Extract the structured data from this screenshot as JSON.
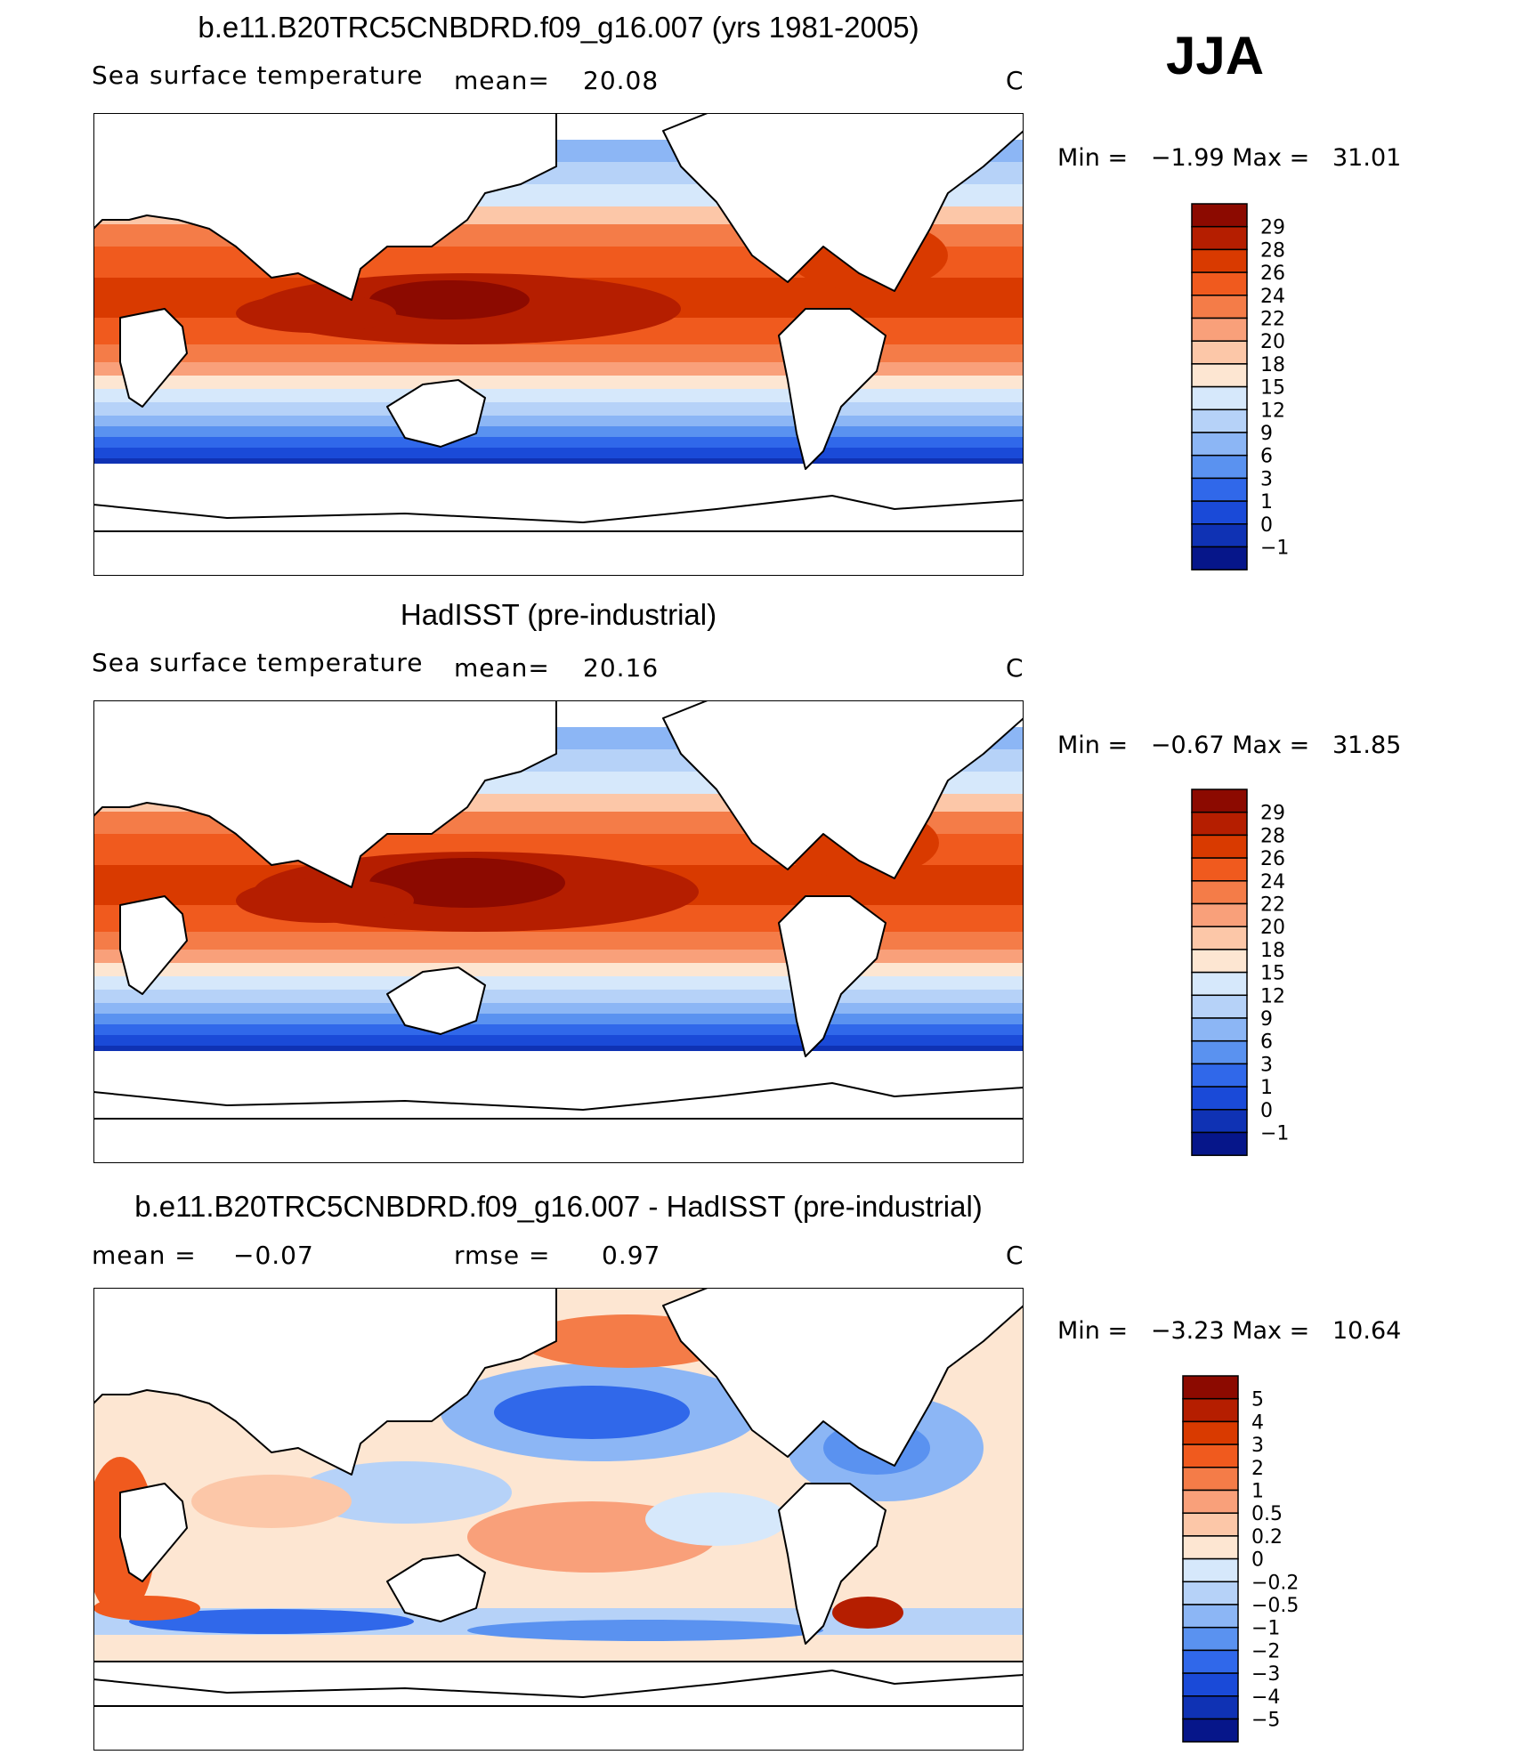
{
  "season": "JJA",
  "panels": [
    {
      "title": "b.e11.B20TRC5CNBDRD.f09_g16.007 (yrs 1981-2005)",
      "variable": "Sea surface temperature",
      "mean_label": "mean=",
      "mean_value": "20.08",
      "extra_label": "",
      "extra_value": "",
      "units": "C",
      "min_label": "Min =",
      "min_value": "−1.99",
      "max_label": "Max =",
      "max_value": "31.01",
      "colorbar": {
        "labels": [
          "29",
          "28",
          "26",
          "24",
          "22",
          "20",
          "18",
          "15",
          "12",
          "9",
          "6",
          "3",
          "1",
          "0",
          "−1"
        ],
        "colors": [
          "#8c0a00",
          "#b51e00",
          "#d93a00",
          "#f05a1e",
          "#f47c48",
          "#f9a07a",
          "#fcc7a8",
          "#fde6d2",
          "#d6e8fb",
          "#b6d2f8",
          "#8cb6f5",
          "#5a92f0",
          "#3068ea",
          "#1a4ad8",
          "#0f32b4",
          "#06168a"
        ]
      }
    },
    {
      "title": "HadISST (pre-industrial)",
      "variable": "Sea surface temperature",
      "mean_label": "mean=",
      "mean_value": "20.16",
      "extra_label": "",
      "extra_value": "",
      "units": "C",
      "min_label": "Min =",
      "min_value": "−0.67",
      "max_label": "Max =",
      "max_value": "31.85",
      "colorbar": {
        "labels": [
          "29",
          "28",
          "26",
          "24",
          "22",
          "20",
          "18",
          "15",
          "12",
          "9",
          "6",
          "3",
          "1",
          "0",
          "−1"
        ],
        "colors": [
          "#8c0a00",
          "#b51e00",
          "#d93a00",
          "#f05a1e",
          "#f47c48",
          "#f9a07a",
          "#fcc7a8",
          "#fde6d2",
          "#d6e8fb",
          "#b6d2f8",
          "#8cb6f5",
          "#5a92f0",
          "#3068ea",
          "#1a4ad8",
          "#0f32b4",
          "#06168a"
        ]
      }
    },
    {
      "title": "b.e11.B20TRC5CNBDRD.f09_g16.007 - HadISST (pre-industrial)",
      "variable": "",
      "mean_label": "mean =",
      "mean_value": "−0.07",
      "extra_label": "rmse =",
      "extra_value": "0.97",
      "units": "C",
      "min_label": "Min =",
      "min_value": "−3.23",
      "max_label": "Max =",
      "max_value": "10.64",
      "colorbar": {
        "labels": [
          "5",
          "4",
          "3",
          "2",
          "1",
          "0.5",
          "0.2",
          "0",
          "−0.2",
          "−0.5",
          "−1",
          "−2",
          "−3",
          "−4",
          "−5"
        ],
        "colors": [
          "#8c0a00",
          "#b51e00",
          "#d93a00",
          "#f05a1e",
          "#f47c48",
          "#f9a07a",
          "#fcc7a8",
          "#fde6d2",
          "#d6e8fb",
          "#b6d2f8",
          "#8cb6f5",
          "#5a92f0",
          "#3068ea",
          "#1a4ad8",
          "#0f32b4",
          "#06168a"
        ]
      }
    }
  ]
}
